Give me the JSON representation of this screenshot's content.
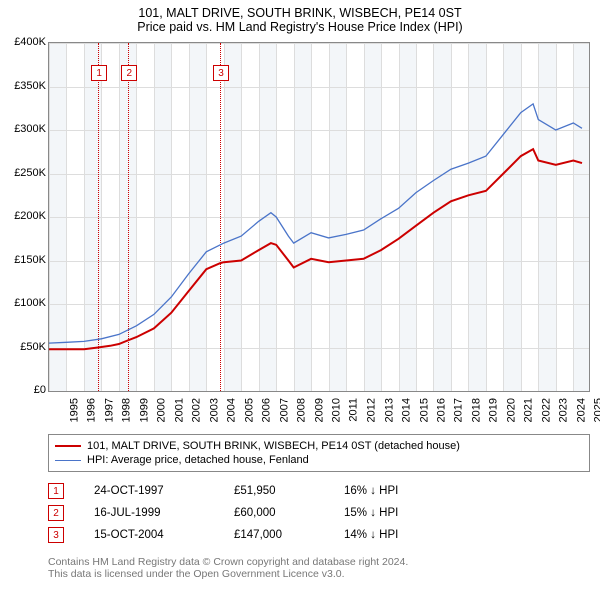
{
  "title": {
    "line1": "101, MALT DRIVE, SOUTH BRINK, WISBECH, PE14 0ST",
    "line2": "Price paid vs. HM Land Registry's House Price Index (HPI)"
  },
  "chart": {
    "type": "line",
    "background_color": "#ffffff",
    "grid_color": "#dddddd",
    "shade_color": "#eaeef4",
    "border_color": "#888888",
    "x": {
      "min": 1995,
      "max": 2025.9,
      "ticks": [
        1995,
        1996,
        1997,
        1998,
        1999,
        2000,
        2001,
        2002,
        2003,
        2004,
        2005,
        2006,
        2007,
        2008,
        2009,
        2010,
        2011,
        2012,
        2013,
        2014,
        2015,
        2016,
        2017,
        2018,
        2019,
        2020,
        2021,
        2022,
        2023,
        2024,
        2025
      ]
    },
    "y": {
      "min": 0,
      "max": 400000,
      "step": 50000,
      "labels": [
        "£0",
        "£50K",
        "£100K",
        "£150K",
        "£200K",
        "£250K",
        "£300K",
        "£350K",
        "£400K"
      ]
    },
    "series": [
      {
        "name_key": "legend.items.0",
        "color": "#cc0000",
        "width": 2,
        "points": [
          [
            1995,
            48000
          ],
          [
            1996,
            48000
          ],
          [
            1997,
            48000
          ],
          [
            1997.8,
            50000
          ],
          [
            1998.5,
            52000
          ],
          [
            1999,
            54000
          ],
          [
            1999.5,
            58000
          ],
          [
            2000,
            62000
          ],
          [
            2001,
            72000
          ],
          [
            2002,
            90000
          ],
          [
            2003,
            115000
          ],
          [
            2004,
            140000
          ],
          [
            2004.8,
            147000
          ],
          [
            2005,
            148000
          ],
          [
            2006,
            150000
          ],
          [
            2007,
            162000
          ],
          [
            2007.7,
            170000
          ],
          [
            2008,
            168000
          ],
          [
            2008.7,
            150000
          ],
          [
            2009,
            142000
          ],
          [
            2010,
            152000
          ],
          [
            2011,
            148000
          ],
          [
            2012,
            150000
          ],
          [
            2013,
            152000
          ],
          [
            2014,
            162000
          ],
          [
            2015,
            175000
          ],
          [
            2016,
            190000
          ],
          [
            2017,
            205000
          ],
          [
            2018,
            218000
          ],
          [
            2019,
            225000
          ],
          [
            2020,
            230000
          ],
          [
            2021,
            250000
          ],
          [
            2022,
            270000
          ],
          [
            2022.7,
            278000
          ],
          [
            2023,
            265000
          ],
          [
            2024,
            260000
          ],
          [
            2025,
            265000
          ],
          [
            2025.5,
            262000
          ]
        ]
      },
      {
        "name_key": "legend.items.1",
        "color": "#4a74c9",
        "width": 1.3,
        "points": [
          [
            1995,
            55000
          ],
          [
            1996,
            56000
          ],
          [
            1997,
            57000
          ],
          [
            1998,
            60000
          ],
          [
            1999,
            65000
          ],
          [
            2000,
            75000
          ],
          [
            2001,
            88000
          ],
          [
            2002,
            108000
          ],
          [
            2003,
            135000
          ],
          [
            2004,
            160000
          ],
          [
            2005,
            170000
          ],
          [
            2006,
            178000
          ],
          [
            2007,
            195000
          ],
          [
            2007.7,
            205000
          ],
          [
            2008,
            200000
          ],
          [
            2008.7,
            178000
          ],
          [
            2009,
            170000
          ],
          [
            2010,
            182000
          ],
          [
            2011,
            176000
          ],
          [
            2012,
            180000
          ],
          [
            2013,
            185000
          ],
          [
            2014,
            198000
          ],
          [
            2015,
            210000
          ],
          [
            2016,
            228000
          ],
          [
            2017,
            242000
          ],
          [
            2018,
            255000
          ],
          [
            2019,
            262000
          ],
          [
            2020,
            270000
          ],
          [
            2021,
            295000
          ],
          [
            2022,
            320000
          ],
          [
            2022.7,
            330000
          ],
          [
            2023,
            312000
          ],
          [
            2024,
            300000
          ],
          [
            2025,
            308000
          ],
          [
            2025.5,
            302000
          ]
        ]
      }
    ],
    "event_lines": [
      {
        "x": 1997.81,
        "marker": "1"
      },
      {
        "x": 1999.54,
        "marker": "2"
      },
      {
        "x": 2004.79,
        "marker": "3"
      }
    ]
  },
  "legend": {
    "items": [
      "101, MALT DRIVE, SOUTH BRINK, WISBECH, PE14 0ST (detached house)",
      "HPI: Average price, detached house, Fenland"
    ],
    "colors": [
      "#cc0000",
      "#4a74c9"
    ]
  },
  "events": [
    {
      "num": "1",
      "date": "24-OCT-1997",
      "price": "£51,950",
      "delta": "16% ↓ HPI"
    },
    {
      "num": "2",
      "date": "16-JUL-1999",
      "price": "£60,000",
      "delta": "15% ↓ HPI"
    },
    {
      "num": "3",
      "date": "15-OCT-2004",
      "price": "£147,000",
      "delta": "14% ↓ HPI"
    }
  ],
  "footer": {
    "line1": "Contains HM Land Registry data © Crown copyright and database right 2024.",
    "line2": "This data is licensed under the Open Government Licence v3.0."
  }
}
